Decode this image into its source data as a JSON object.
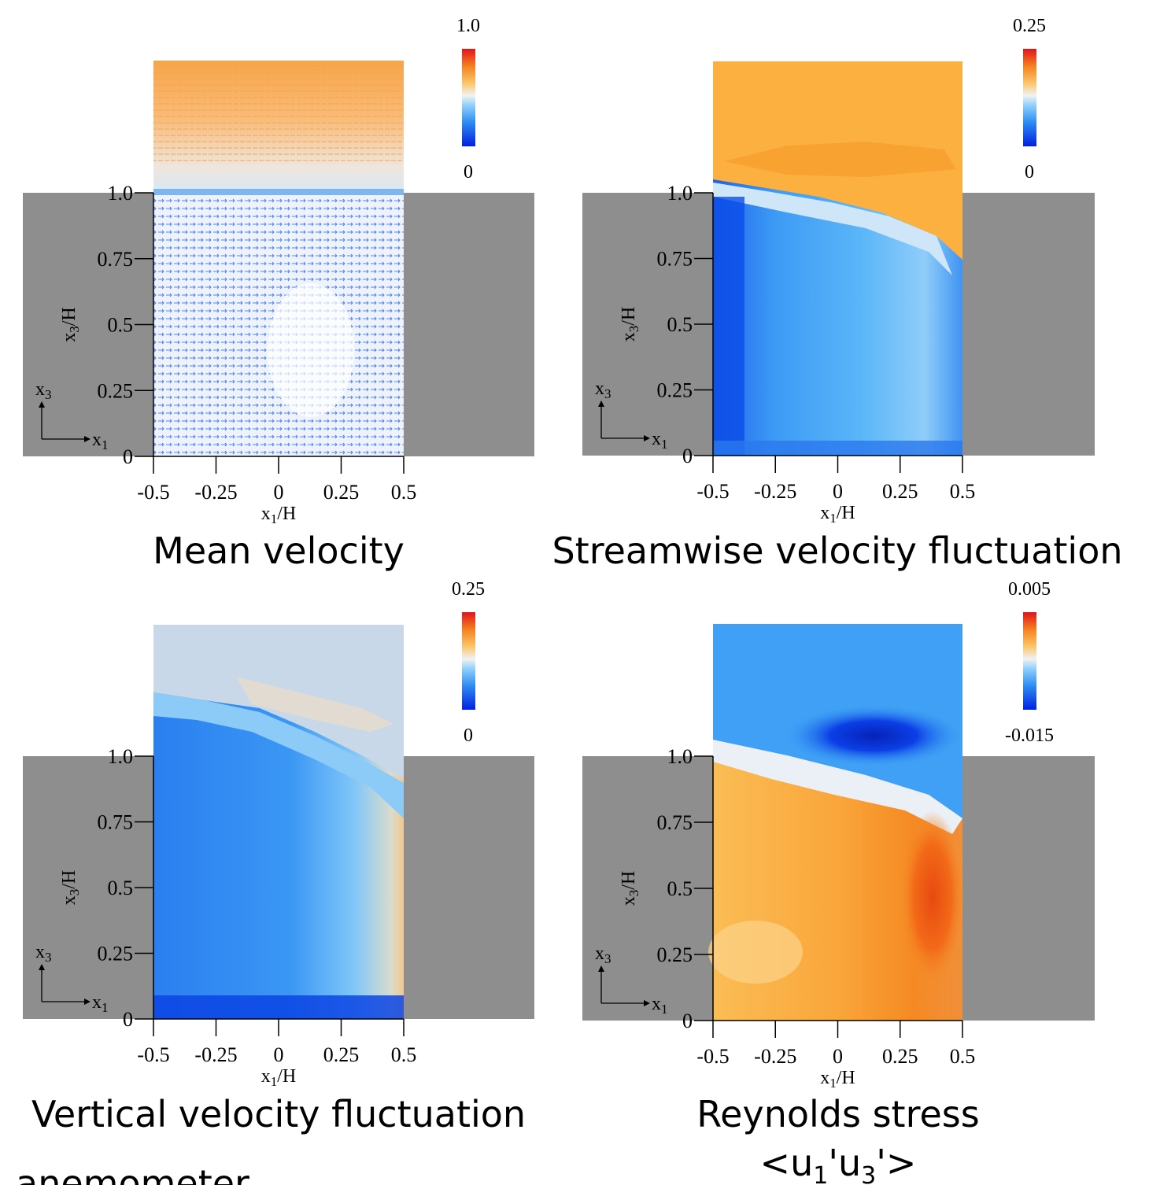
{
  "colors": {
    "wall": "#8e8e8e",
    "orange": "#fbb040",
    "dark_orange": "#f58220",
    "light_blue": "#5bbcf8",
    "mid_blue": "#2f8ef2",
    "dark_blue": "#0b3fe6",
    "pale": "#d6e1ee"
  },
  "chart_data": [
    {
      "type": "vector-field",
      "caption": "Mean velocity",
      "xlabel": "x1/H",
      "ylabel": "x3/H",
      "x_ticks": [
        "-0.5",
        "-0.25",
        "0",
        "0.25",
        "0.5"
      ],
      "y_ticks": [
        "0",
        "0.25",
        "0.5",
        "0.75",
        "1.0"
      ],
      "xlim": [
        -0.5,
        0.5
      ],
      "ylim": [
        0,
        1.5
      ],
      "colorbar": {
        "max": "1.0",
        "min": "0"
      },
      "axis_icon": {
        "vertical": "x3",
        "horizontal": "x1"
      }
    },
    {
      "type": "contour",
      "caption": "Streamwise velocity fluctuation",
      "xlabel": "x1/H",
      "ylabel": "x3/H",
      "x_ticks": [
        "-0.5",
        "-0.25",
        "0",
        "0.25",
        "0.5"
      ],
      "y_ticks": [
        "0",
        "0.25",
        "0.5",
        "0.75",
        "1.0"
      ],
      "xlim": [
        -0.5,
        0.5
      ],
      "ylim": [
        0,
        1.5
      ],
      "colorbar": {
        "max": "0.25",
        "min": "0"
      },
      "axis_icon": {
        "vertical": "x3",
        "horizontal": "x1"
      }
    },
    {
      "type": "contour",
      "caption": "Vertical velocity fluctuation",
      "xlabel": "x1/H",
      "ylabel": "x3/H",
      "x_ticks": [
        "-0.5",
        "-0.25",
        "0",
        "0.25",
        "0.5"
      ],
      "y_ticks": [
        "0",
        "0.25",
        "0.5",
        "0.75",
        "1.0"
      ],
      "xlim": [
        -0.5,
        0.5
      ],
      "ylim": [
        0,
        1.5
      ],
      "colorbar": {
        "max": "0.25",
        "min": "0"
      },
      "axis_icon": {
        "vertical": "x3",
        "horizontal": "x1"
      }
    },
    {
      "type": "contour",
      "caption": "Reynolds stress",
      "caption2": "<u1'u3'>",
      "xlabel": "x1/H",
      "ylabel": "x3/H",
      "x_ticks": [
        "-0.5",
        "-0.25",
        "0",
        "0.25",
        "0.5"
      ],
      "y_ticks": [
        "0",
        "0.25",
        "0.5",
        "0.75",
        "1.0"
      ],
      "xlim": [
        -0.5,
        0.5
      ],
      "ylim": [
        0,
        1.5
      ],
      "colorbar": {
        "max": "0.005",
        "min": "-0.015"
      },
      "axis_icon": {
        "vertical": "x3",
        "horizontal": "x1"
      }
    }
  ],
  "footer_text": "anemometer."
}
